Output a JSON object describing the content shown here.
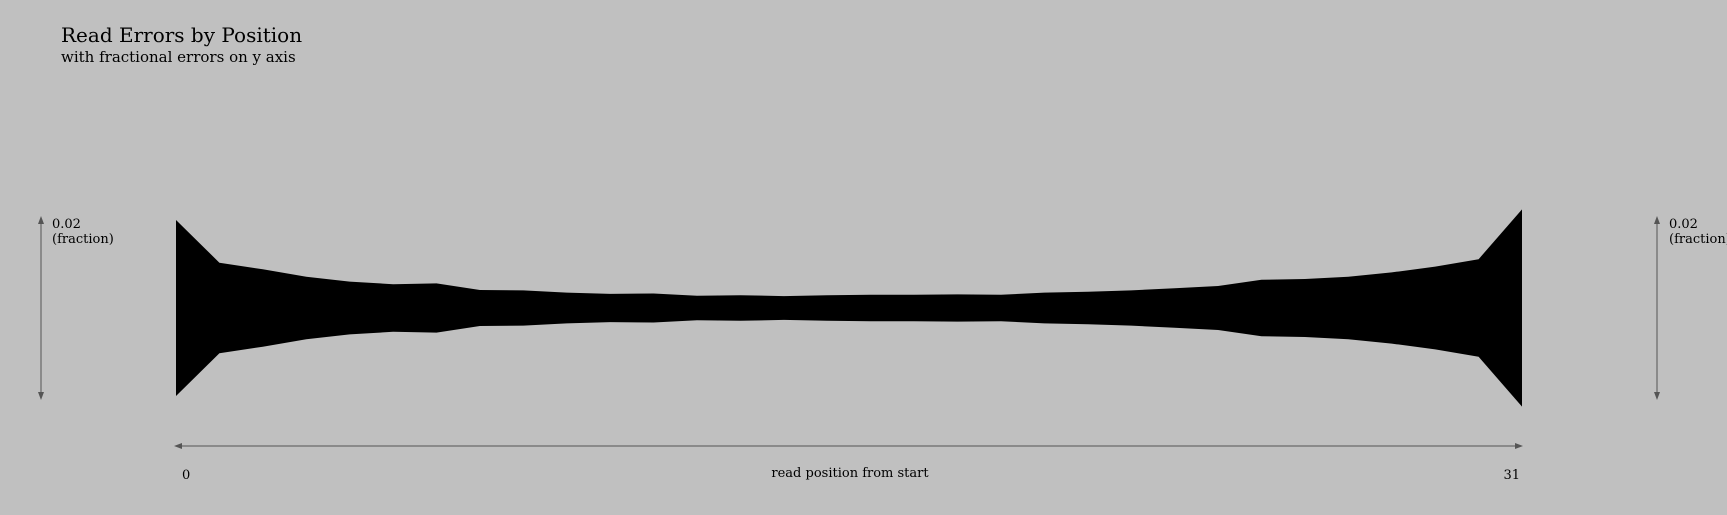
{
  "chart_data": {
    "type": "area",
    "title": "Read Errors by Position",
    "subtitle": "with fractional errors on y axis",
    "xlabel": "read position from start",
    "x_tick_labels": [
      "0",
      "31"
    ],
    "xlim": [
      0,
      31
    ],
    "scale_bar": {
      "value": "0.02",
      "unit": "(fraction)",
      "magnitude": 0.02
    },
    "series": [
      {
        "x": [
          0,
          1,
          2,
          3,
          4,
          5,
          6,
          7,
          8,
          9,
          10,
          11,
          12,
          13,
          14,
          15,
          16,
          17,
          18,
          19,
          20,
          21,
          22,
          23,
          24,
          25,
          26,
          27,
          28,
          29,
          30,
          31
        ],
        "values": [
          0.02,
          0.0103,
          0.0088,
          0.0071,
          0.006,
          0.0054,
          0.0056,
          0.0041,
          0.004,
          0.0035,
          0.0032,
          0.0033,
          0.0028,
          0.0029,
          0.0027,
          0.0029,
          0.003,
          0.003,
          0.0031,
          0.003,
          0.0035,
          0.0037,
          0.004,
          0.0045,
          0.005,
          0.0064,
          0.0066,
          0.0071,
          0.0081,
          0.0094,
          0.0111,
          0.0224
        ]
      }
    ],
    "colors": {
      "background": "#c0c0c0",
      "fill": "#000000",
      "axis": "#555555"
    }
  }
}
